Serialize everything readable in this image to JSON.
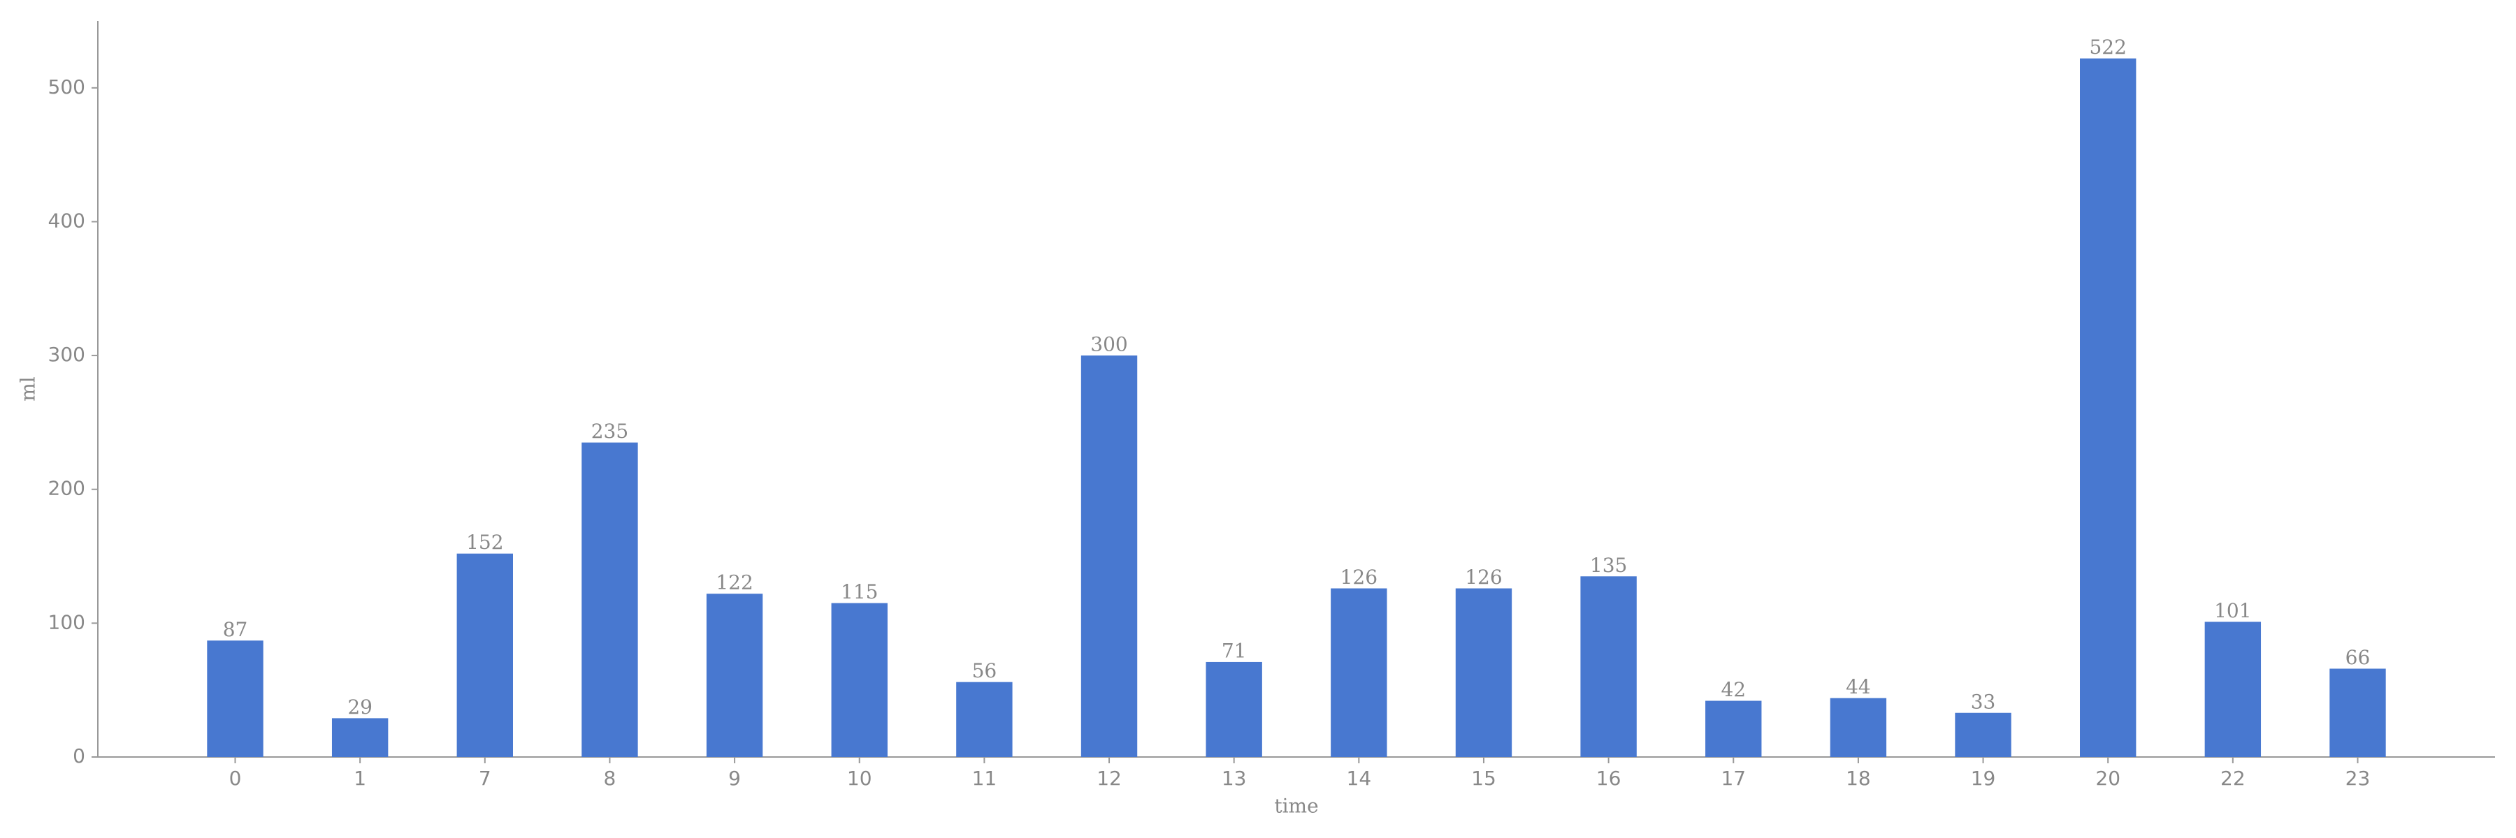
{
  "chart_data": {
    "type": "bar",
    "x_label": "time",
    "y_label": "ml",
    "categories": [
      "0",
      "1",
      "7",
      "8",
      "9",
      "10",
      "11",
      "12",
      "13",
      "14",
      "15",
      "16",
      "17",
      "18",
      "19",
      "20",
      "22",
      "23"
    ],
    "values": [
      87,
      29,
      152,
      235,
      122,
      115,
      56,
      300,
      71,
      126,
      126,
      135,
      42,
      44,
      33,
      522,
      101,
      66
    ],
    "color": "#4878d0",
    "ylim": [
      0,
      550
    ],
    "yticks": [
      0,
      100,
      200,
      300,
      400,
      500
    ],
    "grid": false
  }
}
